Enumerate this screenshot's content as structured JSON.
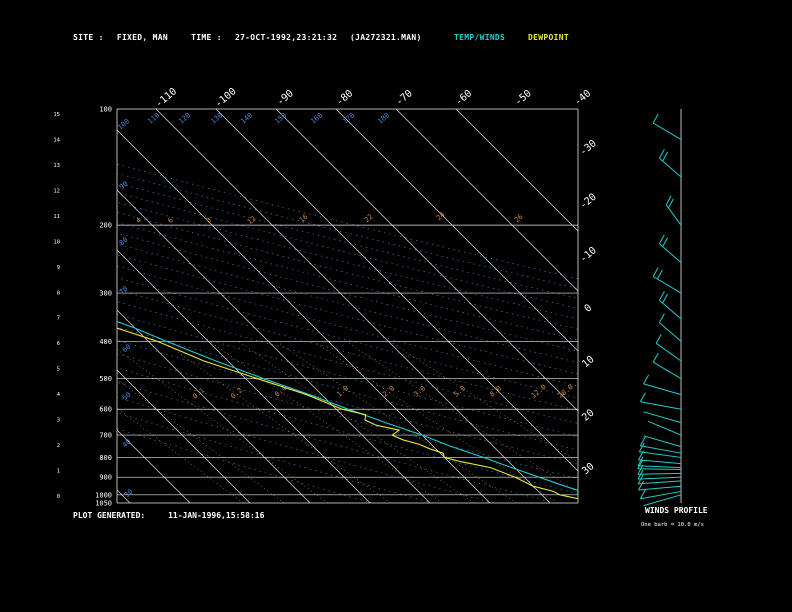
{
  "header": {
    "site_label": "SITE :",
    "site_value": "FIXED, MAN",
    "time_label": "TIME :",
    "time_value": "27-OCT-1992,23:21:32",
    "file": "(JA272321.MAN)",
    "temp_legend": "TEMP/WINDS",
    "dew_legend": "DEWPOINT"
  },
  "footer": {
    "generated_label": "PLOT GENERATED:",
    "generated_value": "11-JAN-1996,15:58:16"
  },
  "wind_panel": {
    "title": "WINDS PROFILE",
    "note": "One barb = 10.0 m/s"
  },
  "colors": {
    "temperature": "#22cccc",
    "dewpoint": "#e8e83a",
    "isotherm": "#e6e6e6",
    "isobar": "#e6e6e6",
    "mixing_ratio": "#d08a40",
    "dry_adiabat": "#4a88d8",
    "background": "#000000"
  },
  "chart_data": {
    "type": "skew-t",
    "pressure_ticks": [
      "100",
      "200",
      "300",
      "400",
      "500",
      "600",
      "700",
      "800",
      "900",
      "1000",
      "1050"
    ],
    "height_ticks_km": [
      "0",
      "1",
      "2",
      "3",
      "4",
      "5",
      "6",
      "7",
      "8",
      "9",
      "10",
      "11",
      "12",
      "13",
      "14",
      "15"
    ],
    "isotherm_labels_top": [
      "-110",
      "-100",
      "-90",
      "-80",
      "-70",
      "-60",
      "-50",
      "-40"
    ],
    "isotherm_labels_right": [
      "-30",
      "-20",
      "-10",
      "0",
      "10",
      "20",
      "30"
    ],
    "mixing_ratio_labels": [
      "4",
      "6",
      "8",
      "12",
      "16",
      "22",
      "24",
      "26",
      "32",
      "0.1",
      "0.2",
      "0.4",
      "1.0",
      "2.0",
      "3.0",
      "5.0",
      "8.0",
      "12.0",
      "20.0"
    ],
    "dry_adiabat_labels": [
      "30",
      "40",
      "50",
      "60",
      "70",
      "80",
      "90",
      "100",
      "110",
      "120",
      "130",
      "140",
      "150",
      "160",
      "170",
      "180"
    ],
    "temperature_profile": [
      {
        "p": 1050,
        "t": 22
      },
      {
        "p": 1000,
        "t": 18
      },
      {
        "p": 970,
        "t": 16.5
      },
      {
        "p": 950,
        "t": 15.3
      },
      {
        "p": 900,
        "t": 12.5
      },
      {
        "p": 850,
        "t": 9.5
      },
      {
        "p": 800,
        "t": 6.5
      },
      {
        "p": 750,
        "t": 3.0
      },
      {
        "p": 700,
        "t": 0.0
      },
      {
        "p": 650,
        "t": -4.0
      },
      {
        "p": 600,
        "t": -8.0
      },
      {
        "p": 550,
        "t": -12.0
      },
      {
        "p": 500,
        "t": -17.0
      },
      {
        "p": 450,
        "t": -22.0
      },
      {
        "p": 400,
        "t": -27.0
      },
      {
        "p": 370,
        "t": -30.0
      },
      {
        "p": 340,
        "t": -34.0
      },
      {
        "p": 300,
        "t": -40.0
      },
      {
        "p": 270,
        "t": -44.0
      },
      {
        "p": 250,
        "t": -48.0
      },
      {
        "p": 220,
        "t": -53.0
      },
      {
        "p": 200,
        "t": -56.0
      },
      {
        "p": 180,
        "t": -58.0
      },
      {
        "p": 160,
        "t": -62.0
      },
      {
        "p": 150,
        "t": -64.0
      },
      {
        "p": 140,
        "t": -66.0
      },
      {
        "p": 130,
        "t": -66.0
      },
      {
        "p": 120,
        "t": -67.0
      },
      {
        "p": 110,
        "t": -70.0
      },
      {
        "p": 100,
        "t": -74.0
      }
    ],
    "dewpoint_profile": [
      {
        "p": 1050,
        "t": 18
      },
      {
        "p": 1000,
        "t": 13
      },
      {
        "p": 980,
        "t": 12.5
      },
      {
        "p": 950,
        "t": 10
      },
      {
        "p": 900,
        "t": 8.5
      },
      {
        "p": 850,
        "t": 6.0
      },
      {
        "p": 820,
        "t": 2.0
      },
      {
        "p": 800,
        "t": 0.0
      },
      {
        "p": 780,
        "t": 0.5
      },
      {
        "p": 760,
        "t": -1.0
      },
      {
        "p": 740,
        "t": -2.0
      },
      {
        "p": 720,
        "t": -4.0
      },
      {
        "p": 700,
        "t": -5.0
      },
      {
        "p": 680,
        "t": -3.0
      },
      {
        "p": 660,
        "t": -6.0
      },
      {
        "p": 640,
        "t": -7.0
      },
      {
        "p": 620,
        "t": -6.0
      },
      {
        "p": 600,
        "t": -9.0
      },
      {
        "p": 550,
        "t": -12.5
      },
      {
        "p": 500,
        "t": -18.0
      },
      {
        "p": 450,
        "t": -24.0
      },
      {
        "p": 400,
        "t": -28.5
      },
      {
        "p": 370,
        "t": -33.0
      },
      {
        "p": 340,
        "t": -38.0
      },
      {
        "p": 320,
        "t": -42.0
      },
      {
        "p": 300,
        "t": -46.0
      },
      {
        "p": 270,
        "t": -52.0
      },
      {
        "p": 250,
        "t": -55.0
      },
      {
        "p": 230,
        "t": -58.0
      },
      {
        "p": 220,
        "t": -63.0
      },
      {
        "p": 210,
        "t": -70.0
      },
      {
        "p": 195,
        "t": -71.0
      },
      {
        "p": 180,
        "t": -72.0
      },
      {
        "p": 160,
        "t": -76.0
      },
      {
        "p": 150,
        "t": -79.0
      },
      {
        "p": 140,
        "t": -80.0
      },
      {
        "p": 130,
        "t": -83.0
      },
      {
        "p": 120,
        "t": -86.0
      },
      {
        "p": 110,
        "t": -87.0
      }
    ],
    "wind_profile": [
      {
        "p": 1000,
        "dir": 240,
        "spd": 6
      },
      {
        "p": 980,
        "dir": 250,
        "spd": 10
      },
      {
        "p": 950,
        "dir": 260,
        "spd": 14
      },
      {
        "p": 920,
        "dir": 262,
        "spd": 16
      },
      {
        "p": 900,
        "dir": 265,
        "spd": 17
      },
      {
        "p": 880,
        "dir": 268,
        "spd": 15
      },
      {
        "p": 860,
        "dir": 272,
        "spd": 14
      },
      {
        "p": 850,
        "dir": 275,
        "spd": 14
      },
      {
        "p": 830,
        "dir": 280,
        "spd": 12
      },
      {
        "p": 800,
        "dir": 285,
        "spd": 12
      },
      {
        "p": 780,
        "dir": 290,
        "spd": 10
      },
      {
        "p": 750,
        "dir": 300,
        "spd": 9
      },
      {
        "p": 700,
        "dir": 310,
        "spd": 8
      },
      {
        "p": 650,
        "dir": 300,
        "spd": 9
      },
      {
        "p": 600,
        "dir": 290,
        "spd": 10
      },
      {
        "p": 550,
        "dir": 300,
        "spd": 12
      },
      {
        "p": 500,
        "dir": 320,
        "spd": 14
      },
      {
        "p": 450,
        "dir": 325,
        "spd": 16
      },
      {
        "p": 400,
        "dir": 330,
        "spd": 18
      },
      {
        "p": 350,
        "dir": 330,
        "spd": 20
      },
      {
        "p": 300,
        "dir": 320,
        "spd": 22
      },
      {
        "p": 250,
        "dir": 330,
        "spd": 22
      },
      {
        "p": 200,
        "dir": 340,
        "spd": 24
      },
      {
        "p": 150,
        "dir": 330,
        "spd": 20
      },
      {
        "p": 120,
        "dir": 320,
        "spd": 18
      }
    ]
  }
}
